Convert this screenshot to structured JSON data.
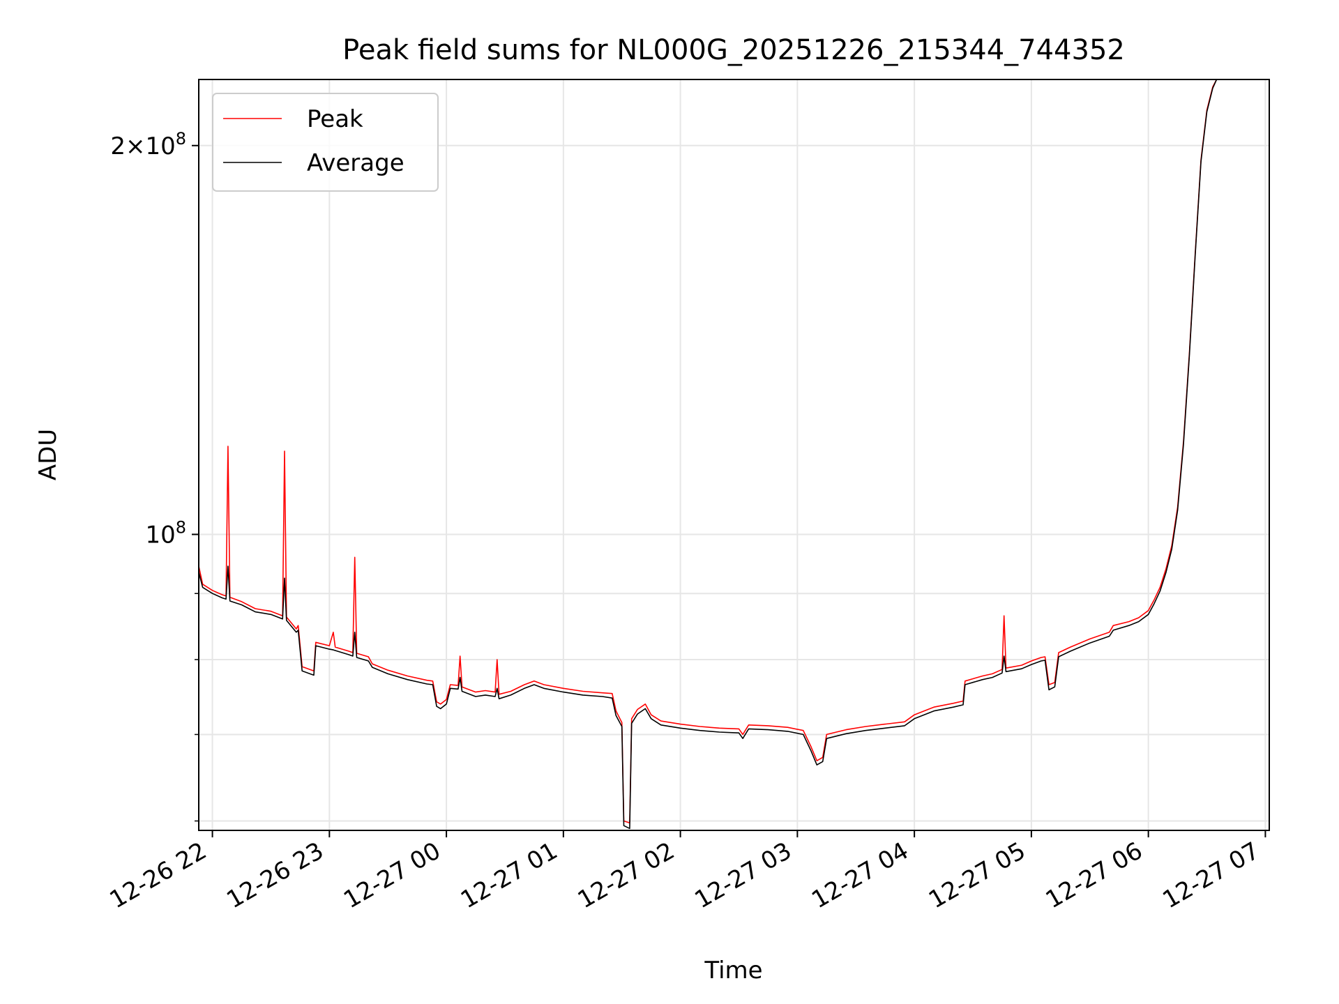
{
  "chart_data": {
    "type": "line",
    "title": "Peak field sums for NL000G_20251226_215344_744352",
    "xlabel": "Time",
    "ylabel": "ADU",
    "y_scale": "log",
    "grid": true,
    "legend_placement": "top-left",
    "xlim": [
      "2025-12-26 21:53",
      "2025-12-27 07:02"
    ],
    "ylim": [
      59000000,
      225000000
    ],
    "x_ticks": [
      "12-26 22",
      "12-26 23",
      "12-27 00",
      "12-27 01",
      "12-27 02",
      "12-27 03",
      "12-27 04",
      "12-27 05",
      "12-27 06",
      "12-27 07"
    ],
    "y_ticks": [
      {
        "value": 100000000,
        "mantissa": "",
        "exponent": "8"
      },
      {
        "value": 200000000,
        "mantissa": "2",
        "exponent": "8"
      }
    ],
    "colors": {
      "peak": "#ff0000",
      "average": "#000000",
      "grid": "#e6e6e6"
    },
    "series": [
      {
        "name": "Peak",
        "color": "#ff0000",
        "points": [
          [
            "2025-12-26 21:53",
            94500000
          ],
          [
            "2025-12-26 21:55",
            91500000
          ],
          [
            "2025-12-26 22:00",
            90500000
          ],
          [
            "2025-12-26 22:05",
            89800000
          ],
          [
            "2025-12-26 22:07",
            89600000
          ],
          [
            "2025-12-26 22:08",
            117000000
          ],
          [
            "2025-12-26 22:09",
            89400000
          ],
          [
            "2025-12-26 22:15",
            88700000
          ],
          [
            "2025-12-26 22:22",
            87600000
          ],
          [
            "2025-12-26 22:30",
            87200000
          ],
          [
            "2025-12-26 22:36",
            86500000
          ],
          [
            "2025-12-26 22:37",
            116000000
          ],
          [
            "2025-12-26 22:38",
            86300000
          ],
          [
            "2025-12-26 22:43",
            84500000
          ],
          [
            "2025-12-26 22:44",
            85000000
          ],
          [
            "2025-12-26 22:46",
            79000000
          ],
          [
            "2025-12-26 22:50",
            78600000
          ],
          [
            "2025-12-26 22:52",
            78400000
          ],
          [
            "2025-12-26 22:53",
            82500000
          ],
          [
            "2025-12-26 23:00",
            82000000
          ],
          [
            "2025-12-26 23:02",
            84000000
          ],
          [
            "2025-12-26 23:03",
            81800000
          ],
          [
            "2025-12-26 23:10",
            81200000
          ],
          [
            "2025-12-26 23:12",
            81000000
          ],
          [
            "2025-12-26 23:13",
            96000000
          ],
          [
            "2025-12-26 23:14",
            80900000
          ],
          [
            "2025-12-26 23:20",
            80400000
          ],
          [
            "2025-12-26 23:22",
            79400000
          ],
          [
            "2025-12-26 23:30",
            78500000
          ],
          [
            "2025-12-26 23:40",
            77700000
          ],
          [
            "2025-12-26 23:50",
            77100000
          ],
          [
            "2025-12-26 23:53",
            77000000
          ],
          [
            "2025-12-26 23:55",
            74200000
          ],
          [
            "2025-12-26 23:57",
            73900000
          ],
          [
            "2025-12-27 00:00",
            74500000
          ],
          [
            "2025-12-27 00:02",
            76500000
          ],
          [
            "2025-12-27 00:06",
            76400000
          ],
          [
            "2025-12-27 00:07",
            80500000
          ],
          [
            "2025-12-27 00:08",
            76200000
          ],
          [
            "2025-12-27 00:15",
            75500000
          ],
          [
            "2025-12-27 00:20",
            75700000
          ],
          [
            "2025-12-27 00:25",
            75500000
          ],
          [
            "2025-12-27 00:26",
            80000000
          ],
          [
            "2025-12-27 00:27",
            75200000
          ],
          [
            "2025-12-27 00:33",
            75600000
          ],
          [
            "2025-12-27 00:40",
            76500000
          ],
          [
            "2025-12-27 00:45",
            77000000
          ],
          [
            "2025-12-27 00:50",
            76500000
          ],
          [
            "2025-12-27 01:00",
            76000000
          ],
          [
            "2025-12-27 01:10",
            75600000
          ],
          [
            "2025-12-27 01:20",
            75400000
          ],
          [
            "2025-12-27 01:25",
            75300000
          ],
          [
            "2025-12-27 01:27",
            73000000
          ],
          [
            "2025-12-27 01:30",
            71500000
          ],
          [
            "2025-12-27 01:31",
            60000000
          ],
          [
            "2025-12-27 01:34",
            59800000
          ],
          [
            "2025-12-27 01:35",
            72000000
          ],
          [
            "2025-12-27 01:38",
            73200000
          ],
          [
            "2025-12-27 01:42",
            73900000
          ],
          [
            "2025-12-27 01:45",
            72500000
          ],
          [
            "2025-12-27 01:50",
            71700000
          ],
          [
            "2025-12-27 02:00",
            71300000
          ],
          [
            "2025-12-27 02:10",
            71000000
          ],
          [
            "2025-12-27 02:20",
            70800000
          ],
          [
            "2025-12-27 02:30",
            70700000
          ],
          [
            "2025-12-27 02:32",
            70000000
          ],
          [
            "2025-12-27 02:35",
            71200000
          ],
          [
            "2025-12-27 02:45",
            71100000
          ],
          [
            "2025-12-27 02:55",
            70900000
          ],
          [
            "2025-12-27 03:03",
            70500000
          ],
          [
            "2025-12-27 03:07",
            68500000
          ],
          [
            "2025-12-27 03:10",
            66800000
          ],
          [
            "2025-12-27 03:13",
            67200000
          ],
          [
            "2025-12-27 03:15",
            70000000
          ],
          [
            "2025-12-27 03:25",
            70600000
          ],
          [
            "2025-12-27 03:35",
            71000000
          ],
          [
            "2025-12-27 03:45",
            71300000
          ],
          [
            "2025-12-27 03:55",
            71600000
          ],
          [
            "2025-12-27 04:00",
            72500000
          ],
          [
            "2025-12-27 04:10",
            73500000
          ],
          [
            "2025-12-27 04:20",
            74000000
          ],
          [
            "2025-12-27 04:25",
            74300000
          ],
          [
            "2025-12-27 04:26",
            77000000
          ],
          [
            "2025-12-27 04:35",
            77700000
          ],
          [
            "2025-12-27 04:40",
            78000000
          ],
          [
            "2025-12-27 04:45",
            78600000
          ],
          [
            "2025-12-27 04:46",
            86500000
          ],
          [
            "2025-12-27 04:47",
            78800000
          ],
          [
            "2025-12-27 04:55",
            79200000
          ],
          [
            "2025-12-27 05:00",
            79800000
          ],
          [
            "2025-12-27 05:05",
            80300000
          ],
          [
            "2025-12-27 05:07",
            80400000
          ],
          [
            "2025-12-27 05:09",
            76500000
          ],
          [
            "2025-12-27 05:12",
            76800000
          ],
          [
            "2025-12-27 05:14",
            81000000
          ],
          [
            "2025-12-27 05:20",
            81800000
          ],
          [
            "2025-12-27 05:30",
            83000000
          ],
          [
            "2025-12-27 05:40",
            84000000
          ],
          [
            "2025-12-27 05:42",
            85000000
          ],
          [
            "2025-12-27 05:50",
            85600000
          ],
          [
            "2025-12-27 05:55",
            86200000
          ],
          [
            "2025-12-27 06:00",
            87300000
          ],
          [
            "2025-12-27 06:03",
            89000000
          ],
          [
            "2025-12-27 06:06",
            91000000
          ],
          [
            "2025-12-27 06:09",
            94000000
          ],
          [
            "2025-12-27 06:12",
            98000000
          ],
          [
            "2025-12-27 06:15",
            105000000
          ],
          [
            "2025-12-27 06:18",
            118000000
          ],
          [
            "2025-12-27 06:21",
            138000000
          ],
          [
            "2025-12-27 06:24",
            165000000
          ],
          [
            "2025-12-27 06:27",
            195000000
          ],
          [
            "2025-12-27 06:30",
            213000000
          ],
          [
            "2025-12-27 06:33",
            222000000
          ],
          [
            "2025-12-27 06:35",
            225000000
          ]
        ]
      },
      {
        "name": "Average",
        "color": "#000000",
        "points": [
          [
            "2025-12-26 21:53",
            93500000
          ],
          [
            "2025-12-26 21:55",
            91000000
          ],
          [
            "2025-12-26 22:00",
            90000000
          ],
          [
            "2025-12-26 22:05",
            89300000
          ],
          [
            "2025-12-26 22:07",
            89100000
          ],
          [
            "2025-12-26 22:08",
            94500000
          ],
          [
            "2025-12-26 22:09",
            88800000
          ],
          [
            "2025-12-26 22:15",
            88200000
          ],
          [
            "2025-12-26 22:22",
            87100000
          ],
          [
            "2025-12-26 22:30",
            86700000
          ],
          [
            "2025-12-26 22:36",
            86000000
          ],
          [
            "2025-12-26 22:37",
            92500000
          ],
          [
            "2025-12-26 22:38",
            85800000
          ],
          [
            "2025-12-26 22:43",
            84000000
          ],
          [
            "2025-12-26 22:44",
            84300000
          ],
          [
            "2025-12-26 22:46",
            78400000
          ],
          [
            "2025-12-26 22:50",
            78000000
          ],
          [
            "2025-12-26 22:52",
            77800000
          ],
          [
            "2025-12-26 22:53",
            82000000
          ],
          [
            "2025-12-26 23:00",
            81500000
          ],
          [
            "2025-12-26 23:02",
            81400000
          ],
          [
            "2025-12-26 23:03",
            81300000
          ],
          [
            "2025-12-26 23:10",
            80700000
          ],
          [
            "2025-12-26 23:12",
            80500000
          ],
          [
            "2025-12-26 23:13",
            84000000
          ],
          [
            "2025-12-26 23:14",
            80300000
          ],
          [
            "2025-12-26 23:20",
            79800000
          ],
          [
            "2025-12-26 23:22",
            78900000
          ],
          [
            "2025-12-26 23:30",
            78000000
          ],
          [
            "2025-12-26 23:40",
            77200000
          ],
          [
            "2025-12-26 23:50",
            76600000
          ],
          [
            "2025-12-26 23:53",
            76500000
          ],
          [
            "2025-12-26 23:55",
            73600000
          ],
          [
            "2025-12-26 23:57",
            73300000
          ],
          [
            "2025-12-27 00:00",
            73900000
          ],
          [
            "2025-12-27 00:02",
            76000000
          ],
          [
            "2025-12-27 00:06",
            75900000
          ],
          [
            "2025-12-27 00:07",
            77500000
          ],
          [
            "2025-12-27 00:08",
            75600000
          ],
          [
            "2025-12-27 00:15",
            74900000
          ],
          [
            "2025-12-27 00:20",
            75100000
          ],
          [
            "2025-12-27 00:25",
            74900000
          ],
          [
            "2025-12-27 00:26",
            76000000
          ],
          [
            "2025-12-27 00:27",
            74600000
          ],
          [
            "2025-12-27 00:33",
            75100000
          ],
          [
            "2025-12-27 00:40",
            76000000
          ],
          [
            "2025-12-27 00:45",
            76500000
          ],
          [
            "2025-12-27 00:50",
            76000000
          ],
          [
            "2025-12-27 01:00",
            75500000
          ],
          [
            "2025-12-27 01:10",
            75100000
          ],
          [
            "2025-12-27 01:20",
            74900000
          ],
          [
            "2025-12-27 01:25",
            74700000
          ],
          [
            "2025-12-27 01:27",
            72400000
          ],
          [
            "2025-12-27 01:30",
            71000000
          ],
          [
            "2025-12-27 01:31",
            59500000
          ],
          [
            "2025-12-27 01:34",
            59200000
          ],
          [
            "2025-12-27 01:35",
            71400000
          ],
          [
            "2025-12-27 01:38",
            72600000
          ],
          [
            "2025-12-27 01:42",
            73300000
          ],
          [
            "2025-12-27 01:45",
            72000000
          ],
          [
            "2025-12-27 01:50",
            71200000
          ],
          [
            "2025-12-27 02:00",
            70800000
          ],
          [
            "2025-12-27 02:10",
            70500000
          ],
          [
            "2025-12-27 02:20",
            70300000
          ],
          [
            "2025-12-27 02:30",
            70200000
          ],
          [
            "2025-12-27 02:32",
            69500000
          ],
          [
            "2025-12-27 02:35",
            70700000
          ],
          [
            "2025-12-27 02:45",
            70600000
          ],
          [
            "2025-12-27 02:55",
            70400000
          ],
          [
            "2025-12-27 03:03",
            70000000
          ],
          [
            "2025-12-27 03:07",
            68000000
          ],
          [
            "2025-12-27 03:10",
            66300000
          ],
          [
            "2025-12-27 03:13",
            66700000
          ],
          [
            "2025-12-27 03:15",
            69500000
          ],
          [
            "2025-12-27 03:25",
            70100000
          ],
          [
            "2025-12-27 03:35",
            70500000
          ],
          [
            "2025-12-27 03:45",
            70800000
          ],
          [
            "2025-12-27 03:55",
            71100000
          ],
          [
            "2025-12-27 04:00",
            72000000
          ],
          [
            "2025-12-27 04:10",
            73000000
          ],
          [
            "2025-12-27 04:20",
            73500000
          ],
          [
            "2025-12-27 04:25",
            73800000
          ],
          [
            "2025-12-27 04:26",
            76500000
          ],
          [
            "2025-12-27 04:35",
            77200000
          ],
          [
            "2025-12-27 04:40",
            77500000
          ],
          [
            "2025-12-27 04:45",
            78100000
          ],
          [
            "2025-12-27 04:46",
            80500000
          ],
          [
            "2025-12-27 04:47",
            78300000
          ],
          [
            "2025-12-27 04:55",
            78700000
          ],
          [
            "2025-12-27 05:00",
            79300000
          ],
          [
            "2025-12-27 05:05",
            79800000
          ],
          [
            "2025-12-27 05:07",
            79900000
          ],
          [
            "2025-12-27 05:09",
            75800000
          ],
          [
            "2025-12-27 05:12",
            76200000
          ],
          [
            "2025-12-27 05:14",
            80400000
          ],
          [
            "2025-12-27 05:20",
            81200000
          ],
          [
            "2025-12-27 05:30",
            82400000
          ],
          [
            "2025-12-27 05:40",
            83400000
          ],
          [
            "2025-12-27 05:42",
            84300000
          ],
          [
            "2025-12-27 05:50",
            85000000
          ],
          [
            "2025-12-27 05:55",
            85600000
          ],
          [
            "2025-12-27 06:00",
            86700000
          ],
          [
            "2025-12-27 06:03",
            88400000
          ],
          [
            "2025-12-27 06:06",
            90400000
          ],
          [
            "2025-12-27 06:09",
            93400000
          ],
          [
            "2025-12-27 06:12",
            97400000
          ],
          [
            "2025-12-27 06:15",
            104400000
          ],
          [
            "2025-12-27 06:18",
            117400000
          ],
          [
            "2025-12-27 06:21",
            137400000
          ],
          [
            "2025-12-27 06:24",
            164400000
          ],
          [
            "2025-12-27 06:27",
            194400000
          ],
          [
            "2025-12-27 06:30",
            212400000
          ],
          [
            "2025-12-27 06:33",
            221500000
          ],
          [
            "2025-12-27 06:35",
            225000000
          ]
        ]
      }
    ]
  }
}
